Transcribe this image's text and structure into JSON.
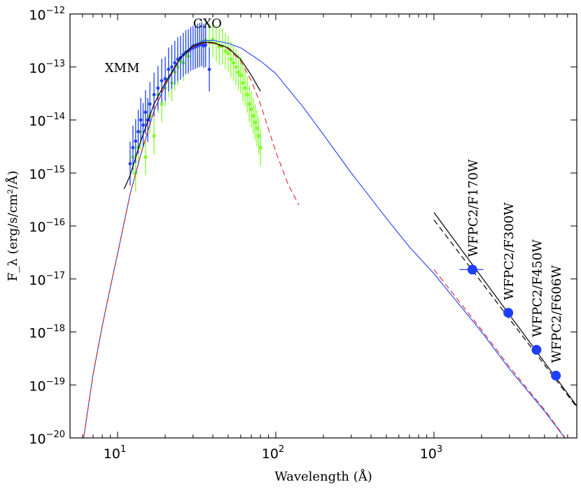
{
  "chart_data": {
    "type": "line",
    "title": "",
    "xlabel": "Wavelength (Å)",
    "ylabel": "F_λ (erg/s/cm²/Å)",
    "xscale": "log",
    "yscale": "log",
    "xlim": [
      5,
      8000
    ],
    "ylim": [
      1e-20,
      1e-12
    ],
    "x_ticks": [
      {
        "value": 10,
        "base": "10",
        "exp": "1"
      },
      {
        "value": 100,
        "base": "10",
        "exp": "2"
      },
      {
        "value": 1000,
        "base": "10",
        "exp": "3"
      }
    ],
    "y_ticks": [
      {
        "value": 1e-12,
        "base": "10",
        "exp": "−12"
      },
      {
        "value": 1e-13,
        "base": "10",
        "exp": "−13"
      },
      {
        "value": 1e-14,
        "base": "10",
        "exp": "−14"
      },
      {
        "value": 1e-15,
        "base": "10",
        "exp": "−15"
      },
      {
        "value": 1e-16,
        "base": "10",
        "exp": "−16"
      },
      {
        "value": 1e-17,
        "base": "10",
        "exp": "−17"
      },
      {
        "value": 1e-18,
        "base": "10",
        "exp": "−18"
      },
      {
        "value": 1e-19,
        "base": "10",
        "exp": "−19"
      },
      {
        "value": 1e-20,
        "base": "10",
        "exp": "−20"
      }
    ],
    "series": [
      {
        "name": "model-blue",
        "style": "solid",
        "color": "#1f3fff",
        "x": [
          6.1,
          7,
          8,
          9,
          10,
          12,
          14,
          17,
          20,
          25,
          30,
          35,
          40,
          50,
          60,
          80,
          100,
          150,
          200,
          300,
          500,
          700,
          1000,
          2000,
          3000,
          5000,
          8000
        ],
        "y": [
          1e-20,
          1.6e-19,
          1.3e-18,
          7e-18,
          3e-17,
          4e-16,
          2.2e-15,
          1.5e-14,
          4.5e-14,
          1.5e-13,
          2.6e-13,
          3.1e-13,
          3.2e-13,
          2.8e-13,
          2.3e-13,
          1.3e-13,
          7.5e-14,
          1.7e-14,
          5.3e-15,
          1e-15,
          1.4e-16,
          4e-17,
          1.26e-17,
          1e-18,
          2e-19,
          3.2e-20,
          5e-21
        ]
      },
      {
        "name": "model-red-dashed",
        "style": "dashed",
        "color": "#e0201f",
        "x": [
          6.1,
          7,
          8,
          9,
          10,
          12,
          14,
          17,
          20,
          25,
          30,
          35,
          40,
          50,
          60,
          70,
          80,
          100,
          120,
          140
        ],
        "y": [
          1e-20,
          1.6e-19,
          1.3e-18,
          7e-18,
          3e-17,
          4e-16,
          2.2e-15,
          1.5e-14,
          4.5e-14,
          1.5e-13,
          2.4e-13,
          2.8e-13,
          2.8e-13,
          2.2e-13,
          1.3e-13,
          5.5e-14,
          2e-14,
          2.5e-15,
          6e-16,
          2.5e-16
        ]
      },
      {
        "name": "model-red-dashed-optical",
        "style": "dashed",
        "color": "#e0201f",
        "x": [
          1000,
          2000,
          3000,
          5000,
          8000
        ],
        "y": [
          1.5e-17,
          1.1e-18,
          2.2e-19,
          3.4e-20,
          5e-21
        ]
      },
      {
        "name": "model-black",
        "style": "solid",
        "color": "#000000",
        "x": [
          11,
          12,
          14,
          17,
          20,
          25,
          30,
          35,
          40,
          50,
          60,
          70,
          80
        ],
        "y": [
          5e-16,
          9e-16,
          4e-15,
          2e-14,
          5e-14,
          1.5e-13,
          2.5e-13,
          2.9e-13,
          2.9e-13,
          2.3e-13,
          1.4e-13,
          7e-14,
          3.5e-14
        ]
      },
      {
        "name": "black-fit-solid",
        "style": "solid",
        "color": "#000000",
        "x": [
          1000,
          8000
        ],
        "y": [
          1.8e-16,
          4e-20
        ]
      },
      {
        "name": "black-fit-dashed",
        "style": "dashed",
        "color": "#000000",
        "x": [
          1000,
          8000
        ],
        "y": [
          1.3e-16,
          3.8e-20
        ]
      }
    ],
    "cxo_points": {
      "name": "CXO",
      "color": "#7fff2a",
      "x": [
        12.5,
        13,
        13.5,
        14,
        15,
        16,
        17,
        18,
        19,
        20,
        21,
        22,
        23,
        24,
        25,
        26,
        27,
        28,
        29,
        30,
        32,
        34,
        36,
        38,
        40,
        42,
        44,
        46,
        48,
        50,
        52,
        54,
        56,
        58,
        60,
        62,
        64,
        66,
        68,
        70,
        72,
        74,
        76,
        78,
        80
      ],
      "y": [
        2e-15,
        1e-15,
        3e-15,
        6e-15,
        2e-15,
        1.2e-14,
        5e-15,
        3e-14,
        2e-14,
        4e-14,
        6e-14,
        5e-14,
        8e-14,
        1e-13,
        1.3e-13,
        1.2e-13,
        1.8e-13,
        1.6e-13,
        2.2e-13,
        2.5e-13,
        2.6e-13,
        3e-13,
        3.2e-13,
        3e-13,
        3.3e-13,
        2.8e-13,
        2.4e-13,
        2.5e-13,
        2e-13,
        1.8e-13,
        1.4e-13,
        1.2e-13,
        1e-13,
        8e-14,
        7e-14,
        5e-14,
        4e-14,
        3e-14,
        2e-14,
        1.6e-14,
        1.2e-14,
        9e-15,
        7e-15,
        5e-15,
        3e-15
      ],
      "err_factor": 2.2
    },
    "xmm_points": {
      "name": "XMM",
      "color": "#1f3fff",
      "x": [
        12,
        12.5,
        13,
        13.5,
        14,
        14.5,
        15,
        15.5,
        16,
        17,
        18,
        19,
        20,
        21,
        22,
        23,
        24,
        25,
        26,
        27,
        28,
        29,
        30,
        31,
        32,
        33,
        34,
        35,
        36,
        38
      ],
      "y": [
        1.5e-15,
        3e-15,
        4e-15,
        6e-15,
        1e-14,
        8e-15,
        1.4e-14,
        1e-14,
        2e-14,
        3e-14,
        4e-14,
        5.5e-14,
        6e-14,
        9e-14,
        1e-13,
        1.2e-13,
        1.4e-13,
        1.5e-13,
        1.7e-13,
        1.9e-13,
        2e-13,
        2.2e-13,
        2.3e-13,
        2.4e-13,
        2.5e-13,
        2.6e-13,
        2.7e-13,
        2.5e-13,
        2.6e-13,
        9e-14
      ],
      "err_factor": 2.6
    },
    "hst_points": {
      "color": "#1f3fff",
      "points": [
        {
          "label": "WFPC2/F170W",
          "x": 1750,
          "y": 1.5e-17,
          "xerr": [
            1450,
            2050
          ]
        },
        {
          "label": "WFPC2/F300W",
          "x": 2950,
          "y": 2.3e-18
        },
        {
          "label": "WFPC2/F450W",
          "x": 4450,
          "y": 4.6e-19
        },
        {
          "label": "WFPC2/F606W",
          "x": 5900,
          "y": 1.5e-19
        }
      ]
    },
    "annotations": [
      {
        "text": "XMM",
        "x": 8.3,
        "y": 8e-14
      },
      {
        "text": "CXO",
        "x": 30,
        "y": 5.5e-13
      }
    ]
  }
}
